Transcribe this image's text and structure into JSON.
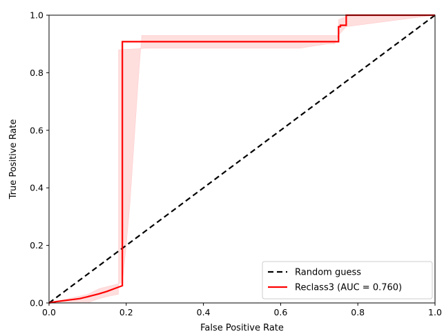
{
  "chart_data": {
    "type": "line",
    "title": "",
    "xlabel": "False Positive Rate",
    "ylabel": "True Positive Rate",
    "xlim": [
      0.0,
      1.0
    ],
    "ylim": [
      0.0,
      1.0
    ],
    "xticks": [
      "0.0",
      "0.2",
      "0.4",
      "0.6",
      "0.8",
      "1.0"
    ],
    "yticks": [
      "0.0",
      "0.2",
      "0.4",
      "0.6",
      "0.8",
      "1.0"
    ],
    "grid": false,
    "legend_position": "lower-right",
    "series": [
      {
        "name": "Random guess",
        "style": "dashed",
        "color": "#000000",
        "x": [
          0.0,
          1.0
        ],
        "y": [
          0.0,
          1.0
        ]
      },
      {
        "name": "Reclass3 (AUC = 0.760)",
        "style": "solid",
        "color": "#ff0000",
        "x": [
          0.0,
          0.02,
          0.05,
          0.08,
          0.11,
          0.13,
          0.15,
          0.17,
          0.19,
          0.19,
          0.25,
          0.45,
          0.65,
          0.75,
          0.75,
          0.755,
          0.755,
          0.77,
          0.77,
          1.0
        ],
        "y": [
          0.0,
          0.005,
          0.01,
          0.015,
          0.025,
          0.032,
          0.04,
          0.05,
          0.06,
          0.908,
          0.908,
          0.908,
          0.908,
          0.908,
          0.96,
          0.96,
          0.965,
          0.965,
          1.0,
          1.0
        ],
        "band_lower": {
          "x": [
            0.1,
            0.13,
            0.16,
            0.18,
            0.18,
            0.25,
            0.45,
            0.65,
            0.72,
            0.74,
            0.75,
            0.77,
            1.0
          ],
          "y": [
            0.0,
            0.015,
            0.025,
            0.03,
            0.88,
            0.885,
            0.885,
            0.885,
            0.9,
            0.9,
            0.93,
            0.96,
            1.0
          ]
        },
        "band_upper": {
          "x": [
            0.0,
            0.1,
            0.13,
            0.16,
            0.19,
            0.2,
            0.21,
            0.22,
            0.23,
            0.24,
            0.35,
            0.55,
            0.75,
            0.75,
            0.78,
            1.0
          ],
          "y": [
            0.0,
            0.03,
            0.05,
            0.06,
            0.07,
            0.2,
            0.35,
            0.55,
            0.75,
            0.93,
            0.93,
            0.93,
            0.93,
            0.985,
            1.0,
            1.0
          ]
        }
      }
    ],
    "legend": [
      "Random guess",
      "Reclass3 (AUC = 0.760)"
    ]
  }
}
